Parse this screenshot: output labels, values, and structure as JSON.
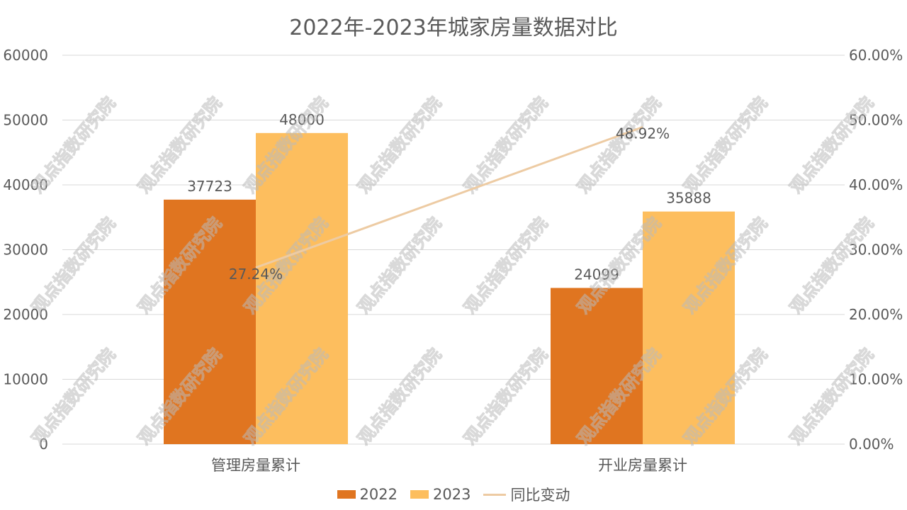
{
  "colors": {
    "series_2022": "#E07520",
    "series_2023": "#FDBE5E",
    "line_change": "#EDCBA3",
    "grid": "#D9D9D9",
    "text": "#595959",
    "watermark": "#BBBBBB"
  },
  "watermark_text": "观点指数研究院",
  "chart_data": {
    "type": "bar",
    "title": "2022年-2023年城家房量数据对比",
    "categories": [
      "管理房量累计",
      "开业房量累计"
    ],
    "series": [
      {
        "name": "2022",
        "type": "bar",
        "axis": "left",
        "values": [
          37723,
          24099
        ],
        "labels": [
          "37723",
          "24099"
        ]
      },
      {
        "name": "2023",
        "type": "bar",
        "axis": "left",
        "values": [
          48000,
          35888
        ],
        "labels": [
          "48000",
          "35888"
        ]
      },
      {
        "name": "同比变动",
        "type": "line",
        "axis": "right",
        "values": [
          27.24,
          48.92
        ],
        "labels": [
          "27.24%",
          "48.92%"
        ]
      }
    ],
    "y_left": {
      "min": 0,
      "max": 60000,
      "ticks": [
        "0",
        "10000",
        "20000",
        "30000",
        "40000",
        "50000",
        "60000"
      ]
    },
    "y_right": {
      "min": 0,
      "max": 60,
      "ticks": [
        "0.00%",
        "10.00%",
        "20.00%",
        "30.00%",
        "40.00%",
        "50.00%",
        "60.00%"
      ]
    },
    "grid": true,
    "legend_position": "bottom"
  }
}
